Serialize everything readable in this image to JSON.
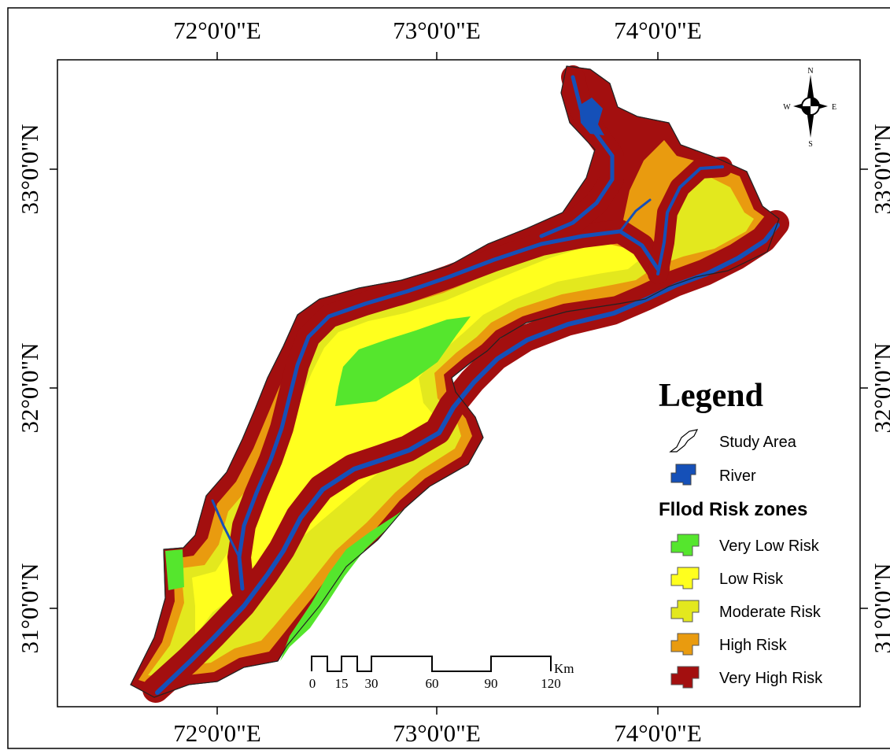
{
  "map": {
    "graticule": {
      "top_labels": [
        "72°0'0\"E",
        "73°0'0\"E",
        "74°0'0\"E"
      ],
      "bottom_labels": [
        "72°0'0\"E",
        "73°0'0\"E",
        "74°0'0\"E"
      ],
      "left_labels": [
        "33°0'0\"N",
        "32°0'0\"N",
        "31°0'0\"N"
      ],
      "right_labels": [
        "33°0'0\"N",
        "32°0'0\"N",
        "31°0'0\"N"
      ]
    },
    "north_arrow": {
      "n": "N",
      "s": "S",
      "e": "E",
      "w": "W"
    },
    "scale_bar": {
      "ticks": [
        "0",
        "15",
        "30",
        "60",
        "90",
        "120"
      ],
      "unit": "Km"
    },
    "legend": {
      "title": "Legend",
      "study_area": "Study Area",
      "river": "River",
      "zones_title": "Fllod Risk zones",
      "zones": [
        {
          "label": "Very Low Risk",
          "color": "#55e62d"
        },
        {
          "label": "Low Risk",
          "color": "#ffff1e"
        },
        {
          "label": "Moderate Risk",
          "color": "#e3e81e"
        },
        {
          "label": "High Risk",
          "color": "#e99b0f"
        },
        {
          "label": "Very High Risk",
          "color": "#a30f0f"
        }
      ]
    },
    "colors": {
      "river": "#1550b8",
      "very_low": "#55e62d",
      "low": "#ffff1e",
      "moderate": "#e3e81e",
      "high": "#e99b0f",
      "very_high": "#a30f0f"
    }
  }
}
